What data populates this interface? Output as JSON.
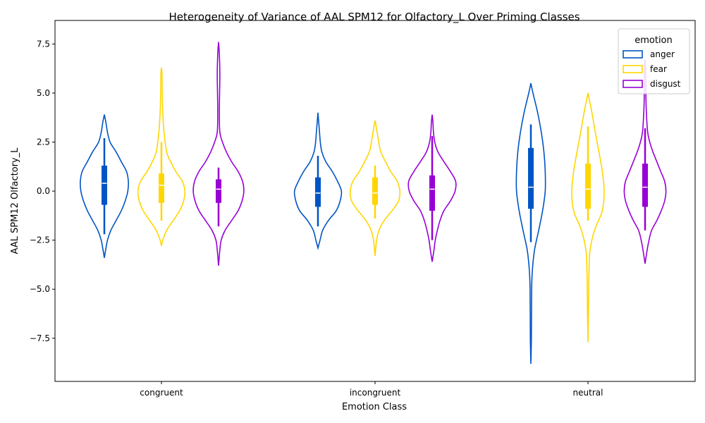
{
  "chart_data": {
    "type": "violin",
    "title": "Heterogeneity of Variance of AAL SPM12 for Olfactory_L Over Priming Classes",
    "xlabel": "Emotion Class",
    "ylabel": "AAL SPM12 Olfactory_L",
    "categories": [
      "congruent",
      "incongruent",
      "neutral"
    ],
    "yticks": [
      -7.5,
      -5.0,
      -2.5,
      0.0,
      2.5,
      5.0,
      7.5
    ],
    "ylim": [
      -9.7,
      8.7
    ],
    "grid": false,
    "legend": {
      "title": "emotion",
      "position": "upper right"
    },
    "series": [
      {
        "name": "anger",
        "color": "#0055c4",
        "groups": [
          {
            "min": -3.4,
            "max": 3.9,
            "q1": -0.7,
            "median": 0.4,
            "q3": 1.3,
            "whisker_low": -2.2,
            "whisker_high": 2.7,
            "profile": [
              [
                -3.4,
                0.0
              ],
              [
                -3.0,
                0.05
              ],
              [
                -2.5,
                0.12
              ],
              [
                -2.0,
                0.25
              ],
              [
                -1.5,
                0.45
              ],
              [
                -1.0,
                0.65
              ],
              [
                -0.5,
                0.8
              ],
              [
                0.0,
                0.9
              ],
              [
                0.5,
                0.92
              ],
              [
                1.0,
                0.85
              ],
              [
                1.5,
                0.65
              ],
              [
                2.0,
                0.45
              ],
              [
                2.5,
                0.22
              ],
              [
                3.0,
                0.12
              ],
              [
                3.5,
                0.06
              ],
              [
                3.9,
                0.0
              ]
            ]
          },
          {
            "min": -2.9,
            "max": 4.0,
            "q1": -0.8,
            "median": -0.1,
            "q3": 0.7,
            "whisker_low": -1.8,
            "whisker_high": 1.8,
            "profile": [
              [
                -2.9,
                0.0
              ],
              [
                -2.5,
                0.08
              ],
              [
                -2.0,
                0.18
              ],
              [
                -1.5,
                0.4
              ],
              [
                -1.0,
                0.7
              ],
              [
                -0.5,
                0.85
              ],
              [
                0.0,
                0.9
              ],
              [
                0.5,
                0.75
              ],
              [
                1.0,
                0.55
              ],
              [
                1.5,
                0.3
              ],
              [
                2.0,
                0.15
              ],
              [
                2.5,
                0.09
              ],
              [
                3.0,
                0.06
              ],
              [
                3.5,
                0.03
              ],
              [
                4.0,
                0.0
              ]
            ]
          },
          {
            "min": -8.8,
            "max": 5.5,
            "q1": -0.9,
            "median": 0.2,
            "q3": 2.2,
            "whisker_low": -2.6,
            "whisker_high": 3.4,
            "profile": [
              [
                -8.8,
                0.0
              ],
              [
                -7.5,
                0.02
              ],
              [
                -5.0,
                0.03
              ],
              [
                -4.0,
                0.06
              ],
              [
                -3.0,
                0.14
              ],
              [
                -2.0,
                0.3
              ],
              [
                -1.0,
                0.45
              ],
              [
                0.0,
                0.55
              ],
              [
                1.0,
                0.55
              ],
              [
                2.0,
                0.5
              ],
              [
                3.0,
                0.4
              ],
              [
                4.0,
                0.26
              ],
              [
                5.0,
                0.08
              ],
              [
                5.5,
                0.0
              ]
            ]
          }
        ]
      },
      {
        "name": "fear",
        "color": "#ffd600",
        "groups": [
          {
            "min": -2.8,
            "max": 6.3,
            "q1": -0.6,
            "median": 0.3,
            "q3": 0.9,
            "whisker_low": -1.5,
            "whisker_high": 2.5,
            "profile": [
              [
                -2.8,
                0.0
              ],
              [
                -2.5,
                0.05
              ],
              [
                -2.0,
                0.2
              ],
              [
                -1.5,
                0.45
              ],
              [
                -1.0,
                0.7
              ],
              [
                -0.5,
                0.85
              ],
              [
                0.0,
                0.9
              ],
              [
                0.5,
                0.8
              ],
              [
                1.0,
                0.55
              ],
              [
                1.5,
                0.35
              ],
              [
                2.0,
                0.2
              ],
              [
                3.0,
                0.1
              ],
              [
                4.0,
                0.05
              ],
              [
                5.0,
                0.03
              ],
              [
                6.0,
                0.02
              ],
              [
                6.3,
                0.0
              ]
            ]
          },
          {
            "min": -3.3,
            "max": 3.6,
            "q1": -0.7,
            "median": -0.1,
            "q3": 0.7,
            "whisker_low": -1.4,
            "whisker_high": 1.3,
            "profile": [
              [
                -3.3,
                0.0
              ],
              [
                -3.0,
                0.02
              ],
              [
                -2.5,
                0.06
              ],
              [
                -2.0,
                0.15
              ],
              [
                -1.5,
                0.35
              ],
              [
                -1.0,
                0.65
              ],
              [
                -0.5,
                0.9
              ],
              [
                0.0,
                0.95
              ],
              [
                0.5,
                0.85
              ],
              [
                1.0,
                0.6
              ],
              [
                1.5,
                0.4
              ],
              [
                2.0,
                0.22
              ],
              [
                2.5,
                0.14
              ],
              [
                3.0,
                0.08
              ],
              [
                3.6,
                0.0
              ]
            ]
          },
          {
            "min": -7.7,
            "max": 5.0,
            "q1": -0.9,
            "median": 0.1,
            "q3": 1.4,
            "whisker_low": -1.5,
            "whisker_high": 3.3,
            "profile": [
              [
                -7.7,
                0.0
              ],
              [
                -6.0,
                0.02
              ],
              [
                -4.0,
                0.04
              ],
              [
                -3.0,
                0.08
              ],
              [
                -2.0,
                0.25
              ],
              [
                -1.0,
                0.55
              ],
              [
                0.0,
                0.62
              ],
              [
                1.0,
                0.55
              ],
              [
                2.0,
                0.42
              ],
              [
                3.0,
                0.28
              ],
              [
                4.0,
                0.15
              ],
              [
                5.0,
                0.0
              ]
            ]
          }
        ]
      },
      {
        "name": "disgust",
        "color": "#9800d6",
        "groups": [
          {
            "min": -3.8,
            "max": 7.6,
            "q1": -0.6,
            "median": 0.1,
            "q3": 0.6,
            "whisker_low": -1.8,
            "whisker_high": 1.2,
            "profile": [
              [
                -3.8,
                0.0
              ],
              [
                -3.0,
                0.05
              ],
              [
                -2.5,
                0.1
              ],
              [
                -2.0,
                0.25
              ],
              [
                -1.5,
                0.5
              ],
              [
                -1.0,
                0.75
              ],
              [
                -0.5,
                0.9
              ],
              [
                0.0,
                0.97
              ],
              [
                0.5,
                0.92
              ],
              [
                1.0,
                0.75
              ],
              [
                1.5,
                0.5
              ],
              [
                2.0,
                0.3
              ],
              [
                2.5,
                0.15
              ],
              [
                3.0,
                0.05
              ],
              [
                4.0,
                0.03
              ],
              [
                5.0,
                0.04
              ],
              [
                6.0,
                0.05
              ],
              [
                7.0,
                0.03
              ],
              [
                7.6,
                0.0
              ]
            ]
          },
          {
            "min": -3.6,
            "max": 3.9,
            "q1": -1.0,
            "median": 0.1,
            "q3": 0.8,
            "whisker_low": -2.5,
            "whisker_high": 2.8,
            "profile": [
              [
                -3.6,
                0.0
              ],
              [
                -3.0,
                0.07
              ],
              [
                -2.5,
                0.12
              ],
              [
                -2.0,
                0.2
              ],
              [
                -1.5,
                0.3
              ],
              [
                -1.0,
                0.45
              ],
              [
                -0.5,
                0.7
              ],
              [
                0.0,
                0.88
              ],
              [
                0.5,
                0.9
              ],
              [
                1.0,
                0.7
              ],
              [
                1.5,
                0.45
              ],
              [
                2.0,
                0.22
              ],
              [
                2.5,
                0.1
              ],
              [
                3.0,
                0.05
              ],
              [
                3.5,
                0.03
              ],
              [
                3.9,
                0.0
              ]
            ]
          },
          {
            "min": -3.7,
            "max": 6.7,
            "q1": -0.8,
            "median": 0.2,
            "q3": 1.4,
            "whisker_low": -2.0,
            "whisker_high": 3.2,
            "profile": [
              [
                -3.7,
                0.0
              ],
              [
                -3.0,
                0.08
              ],
              [
                -2.5,
                0.15
              ],
              [
                -2.0,
                0.25
              ],
              [
                -1.5,
                0.45
              ],
              [
                -1.0,
                0.62
              ],
              [
                -0.5,
                0.75
              ],
              [
                0.0,
                0.8
              ],
              [
                0.5,
                0.75
              ],
              [
                1.0,
                0.6
              ],
              [
                1.5,
                0.45
              ],
              [
                2.0,
                0.3
              ],
              [
                2.5,
                0.18
              ],
              [
                3.0,
                0.1
              ],
              [
                4.0,
                0.05
              ],
              [
                5.0,
                0.03
              ],
              [
                6.0,
                0.03
              ],
              [
                6.7,
                0.0
              ]
            ]
          }
        ]
      }
    ]
  }
}
